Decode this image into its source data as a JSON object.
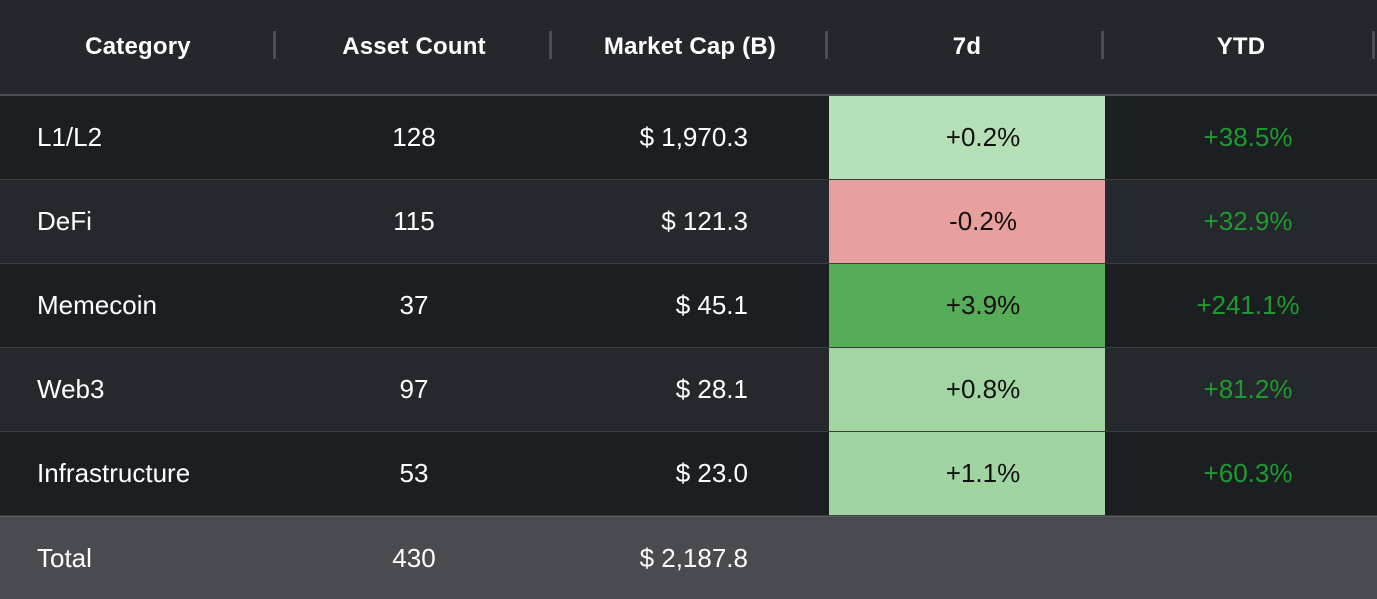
{
  "columns": [
    "Category",
    "Asset Count",
    "Market Cap (B)",
    "7d",
    "YTD"
  ],
  "rows": [
    {
      "category": "L1/L2",
      "asset_count": "128",
      "market_cap": "$ 1,970.3",
      "change_7d": "+0.2%",
      "change_7d_color": "#b5dfb5",
      "ytd": "+38.5%"
    },
    {
      "category": "DeFi",
      "asset_count": "115",
      "market_cap": "$ 121.3",
      "change_7d": "-0.2%",
      "change_7d_color": "#e8a09e",
      "ytd": "+32.9%"
    },
    {
      "category": "Memecoin",
      "asset_count": "37",
      "market_cap": "$ 45.1",
      "change_7d": "+3.9%",
      "change_7d_color": "#57ac57",
      "ytd": "+241.1%"
    },
    {
      "category": "Web3",
      "asset_count": "97",
      "market_cap": "$ 28.1",
      "change_7d": "+0.8%",
      "change_7d_color": "#a2d5a2",
      "ytd": "+81.2%"
    },
    {
      "category": "Infrastructure",
      "asset_count": "53",
      "market_cap": "$ 23.0",
      "change_7d": "+1.1%",
      "change_7d_color": "#a0d4a0",
      "ytd": "+60.3%"
    }
  ],
  "total": {
    "label": "Total",
    "asset_count": "430",
    "market_cap": "$ 2,187.8"
  },
  "colors": {
    "ytd_positive": "#1f9a2e",
    "header_bg": "#24272b",
    "total_bg": "#4a4b50"
  }
}
